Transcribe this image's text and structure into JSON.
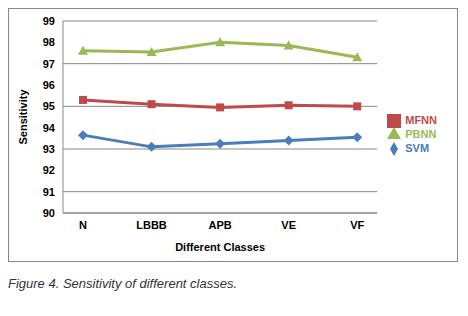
{
  "chart_data": {
    "type": "line",
    "x_label": "Different Classes",
    "y_label": "Sensitivity",
    "caption": "Figure 4. Sensitivity of different classes.",
    "categories": [
      "N",
      "LBBB",
      "APB",
      "VE",
      "VF"
    ],
    "series": [
      {
        "name": "SVM",
        "color": "#4a7ebb",
        "marker": "diamond",
        "values": [
          93.65,
          93.1,
          93.25,
          93.4,
          93.55
        ]
      },
      {
        "name": "MFNN",
        "color": "#be4b48",
        "marker": "square",
        "values": [
          95.3,
          95.1,
          94.95,
          95.05,
          95.0
        ]
      },
      {
        "name": "PBNN",
        "color": "#98b954",
        "marker": "triangle",
        "values": [
          97.6,
          97.55,
          98.0,
          97.85,
          97.3
        ]
      }
    ],
    "ylim": [
      90,
      99
    ],
    "yticks": [
      90,
      91,
      92,
      93,
      94,
      95,
      96,
      97,
      98,
      99
    ],
    "grid": true,
    "legend": "right"
  }
}
